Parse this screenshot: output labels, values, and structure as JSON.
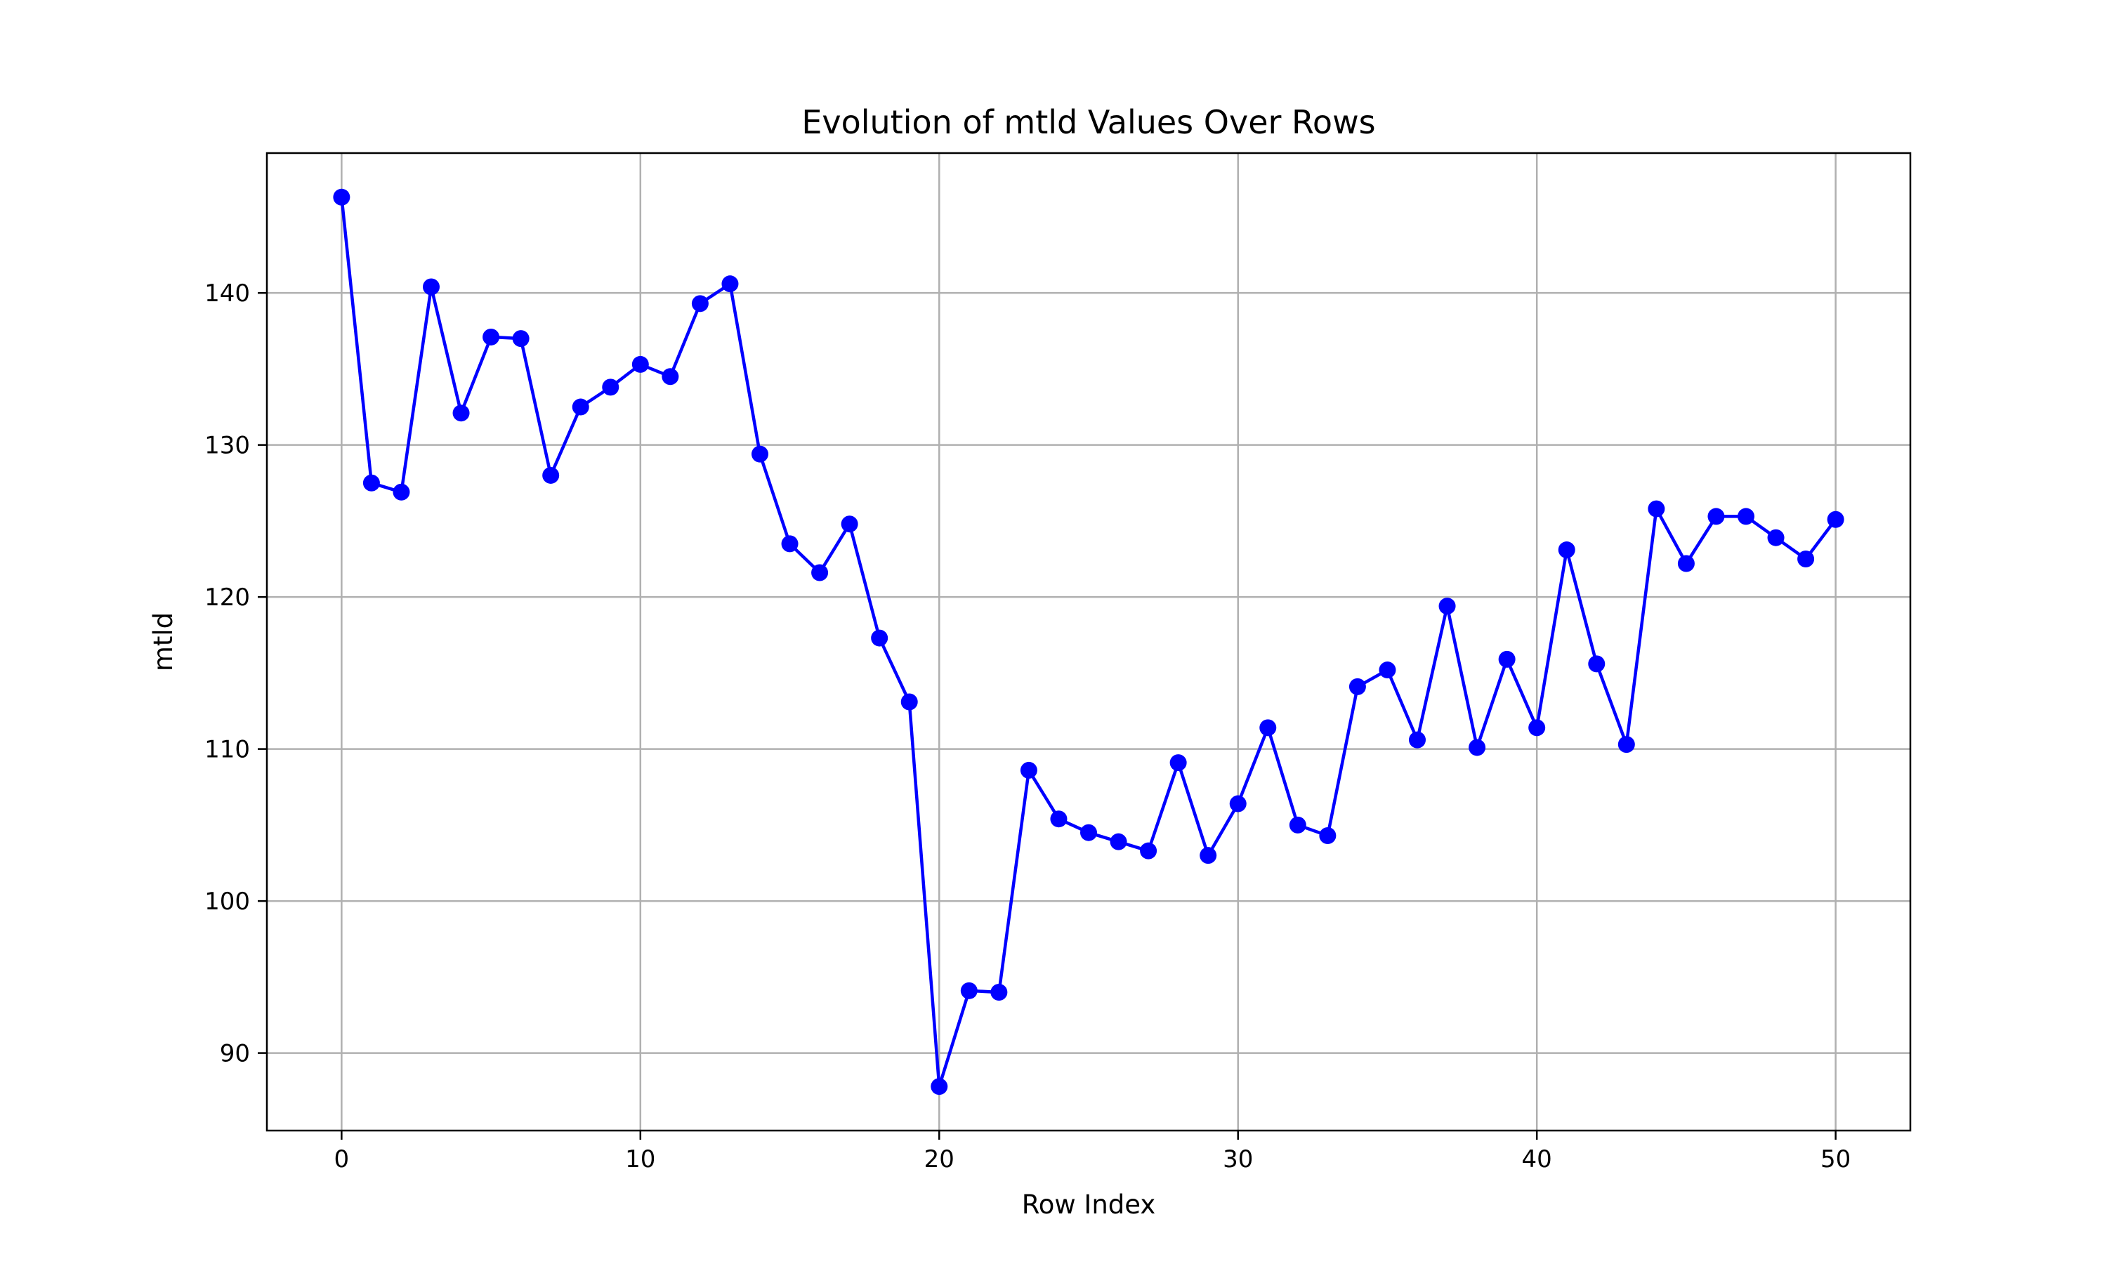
{
  "chart_data": {
    "type": "line",
    "title": "Evolution of mtld Values Over Rows",
    "xlabel": "Row Index",
    "ylabel": "mtld",
    "xlim": [
      -2.5,
      52.5
    ],
    "ylim": [
      84.9,
      149.2
    ],
    "xticks": [
      0,
      10,
      20,
      30,
      40,
      50
    ],
    "yticks": [
      90,
      100,
      110,
      120,
      130,
      140
    ],
    "grid": true,
    "series": [
      {
        "color": "#0000ff",
        "marker": "circle",
        "x": [
          0,
          1,
          2,
          3,
          4,
          5,
          6,
          7,
          8,
          9,
          10,
          11,
          12,
          13,
          14,
          15,
          16,
          17,
          18,
          19,
          20,
          21,
          22,
          23,
          24,
          25,
          26,
          27,
          28,
          29,
          30,
          31,
          32,
          33,
          34,
          35,
          36,
          37,
          38,
          39,
          40,
          41,
          42,
          43,
          44,
          45,
          46,
          47,
          48,
          49,
          50
        ],
        "y": [
          146.3,
          127.5,
          126.9,
          140.4,
          132.1,
          137.1,
          137.0,
          128.0,
          132.5,
          133.8,
          135.3,
          134.5,
          139.3,
          140.6,
          129.4,
          123.5,
          121.6,
          124.8,
          117.3,
          113.1,
          87.8,
          94.1,
          94.0,
          108.6,
          105.4,
          104.5,
          103.9,
          103.3,
          109.1,
          103.0,
          106.4,
          111.4,
          105.0,
          104.3,
          114.1,
          115.2,
          110.6,
          119.4,
          110.1,
          115.9,
          111.4,
          123.1,
          115.6,
          110.3,
          125.8,
          122.2,
          125.3,
          125.3,
          123.9,
          122.5,
          125.1
        ]
      }
    ]
  }
}
